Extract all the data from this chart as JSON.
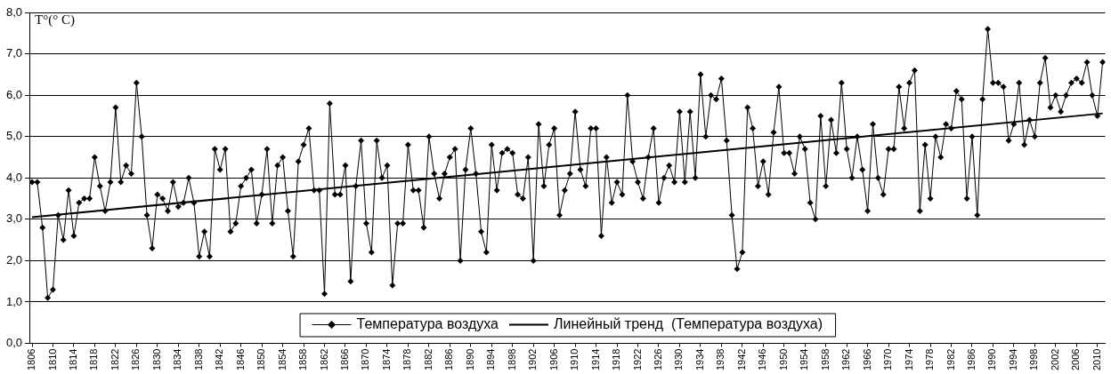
{
  "chart_data": {
    "type": "line",
    "ylabel": "T°(° C)",
    "x": [
      1806,
      1807,
      1808,
      1809,
      1810,
      1811,
      1812,
      1813,
      1814,
      1815,
      1816,
      1817,
      1818,
      1819,
      1820,
      1821,
      1822,
      1823,
      1824,
      1825,
      1826,
      1827,
      1828,
      1829,
      1830,
      1831,
      1832,
      1833,
      1834,
      1835,
      1836,
      1837,
      1838,
      1839,
      1840,
      1841,
      1842,
      1843,
      1844,
      1845,
      1846,
      1847,
      1848,
      1849,
      1850,
      1851,
      1852,
      1853,
      1854,
      1855,
      1856,
      1857,
      1858,
      1859,
      1860,
      1861,
      1862,
      1863,
      1864,
      1865,
      1866,
      1867,
      1868,
      1869,
      1870,
      1871,
      1872,
      1873,
      1874,
      1875,
      1876,
      1877,
      1878,
      1879,
      1880,
      1881,
      1882,
      1883,
      1884,
      1885,
      1886,
      1887,
      1888,
      1889,
      1890,
      1891,
      1892,
      1893,
      1894,
      1895,
      1896,
      1897,
      1898,
      1899,
      1900,
      1901,
      1902,
      1903,
      1904,
      1905,
      1906,
      1907,
      1908,
      1909,
      1910,
      1911,
      1912,
      1913,
      1914,
      1915,
      1916,
      1917,
      1918,
      1919,
      1920,
      1921,
      1922,
      1923,
      1924,
      1925,
      1926,
      1927,
      1928,
      1929,
      1930,
      1931,
      1932,
      1933,
      1934,
      1935,
      1936,
      1937,
      1938,
      1939,
      1940,
      1941,
      1942,
      1943,
      1944,
      1945,
      1946,
      1947,
      1948,
      1949,
      1950,
      1951,
      1952,
      1953,
      1954,
      1955,
      1956,
      1957,
      1958,
      1959,
      1960,
      1961,
      1962,
      1963,
      1964,
      1965,
      1966,
      1967,
      1968,
      1969,
      1970,
      1971,
      1972,
      1973,
      1974,
      1975,
      1976,
      1977,
      1978,
      1979,
      1980,
      1981,
      1982,
      1983,
      1984,
      1985,
      1986,
      1987,
      1988,
      1989,
      1990,
      1991,
      1992,
      1993,
      1994,
      1995,
      1996,
      1997,
      1998,
      1999,
      2000,
      2001,
      2002,
      2003,
      2004,
      2005,
      2006,
      2007,
      2008,
      2009,
      2010,
      2011
    ],
    "xlim": [
      1805.5,
      2011.5
    ],
    "xticks": [
      1806,
      1810,
      1814,
      1818,
      1822,
      1826,
      1830,
      1834,
      1838,
      1842,
      1846,
      1850,
      1854,
      1858,
      1862,
      1866,
      1870,
      1874,
      1878,
      1882,
      1886,
      1890,
      1894,
      1898,
      1902,
      1906,
      1910,
      1914,
      1918,
      1922,
      1926,
      1930,
      1934,
      1938,
      1942,
      1946,
      1950,
      1954,
      1958,
      1962,
      1966,
      1970,
      1974,
      1978,
      1982,
      1986,
      1990,
      1994,
      1998,
      2002,
      2006,
      2010
    ],
    "ylim": [
      0,
      8
    ],
    "yticks": [
      {
        "value": 0,
        "label": "0,0"
      },
      {
        "value": 1,
        "label": "1,0"
      },
      {
        "value": 2,
        "label": "2,0"
      },
      {
        "value": 3,
        "label": "3,0"
      },
      {
        "value": 4,
        "label": "4,0"
      },
      {
        "value": 5,
        "label": "5,0"
      },
      {
        "value": 6,
        "label": "6,0"
      },
      {
        "value": 7,
        "label": "7,0"
      },
      {
        "value": 8,
        "label": "8,0"
      }
    ],
    "grid": "y",
    "legend": "bottom",
    "line_style": "solid",
    "series": [
      {
        "name": "Температура воздуха",
        "color": "#000000",
        "marker": "diamond",
        "values": [
          3.9,
          3.9,
          2.8,
          1.1,
          1.3,
          3.1,
          2.5,
          3.7,
          2.6,
          3.4,
          3.5,
          3.5,
          4.5,
          3.8,
          3.2,
          3.9,
          5.7,
          3.9,
          4.3,
          4.1,
          6.3,
          5.0,
          3.1,
          2.3,
          3.6,
          3.5,
          3.2,
          3.9,
          3.3,
          3.4,
          4.0,
          3.4,
          2.1,
          2.7,
          2.1,
          4.7,
          4.2,
          4.7,
          2.7,
          2.9,
          3.8,
          4.0,
          4.2,
          2.9,
          3.6,
          4.7,
          2.9,
          4.3,
          4.5,
          3.2,
          2.1,
          4.4,
          4.8,
          5.2,
          3.7,
          3.7,
          1.2,
          5.8,
          3.6,
          3.6,
          4.3,
          1.5,
          3.8,
          4.9,
          2.9,
          2.2,
          4.9,
          4.0,
          4.3,
          1.4,
          2.9,
          2.9,
          4.8,
          3.7,
          3.7,
          2.8,
          5.0,
          4.1,
          3.5,
          4.1,
          4.5,
          4.7,
          2.0,
          4.2,
          5.2,
          4.1,
          2.7,
          2.2,
          4.8,
          3.7,
          4.6,
          4.7,
          4.6,
          3.6,
          3.5,
          4.5,
          2.0,
          5.3,
          3.8,
          4.8,
          5.2,
          3.1,
          3.7,
          4.1,
          5.6,
          4.2,
          3.8,
          5.2,
          5.2,
          2.6,
          4.5,
          3.4,
          3.9,
          3.6,
          6.0,
          4.4,
          3.9,
          3.5,
          4.5,
          5.2,
          3.4,
          4.0,
          4.3,
          3.9,
          5.6,
          3.9,
          5.6,
          4.0,
          6.5,
          5.0,
          6.0,
          5.9,
          6.4,
          4.9,
          3.1,
          1.8,
          2.2,
          5.7,
          5.2,
          3.8,
          4.4,
          3.6,
          5.1,
          6.2,
          4.6,
          4.6,
          4.1,
          5.0,
          4.7,
          3.4,
          3.0,
          5.5,
          3.8,
          5.4,
          4.6,
          6.3,
          4.7,
          4.0,
          5.0,
          4.2,
          3.2,
          5.3,
          4.0,
          3.6,
          4.7,
          4.7,
          6.2,
          5.2,
          6.3,
          6.6,
          3.2,
          4.8,
          3.5,
          5.0,
          4.5,
          5.3,
          5.2,
          6.1,
          5.9,
          3.5,
          5.0,
          3.1,
          5.9,
          7.6,
          6.3,
          6.3,
          6.2,
          4.9,
          5.3,
          6.3,
          4.8,
          5.4,
          5.0,
          6.3,
          6.9,
          5.7,
          6.0,
          5.6,
          6.0,
          6.3,
          6.4,
          6.3,
          6.8,
          6.0,
          5.5,
          6.8
        ]
      },
      {
        "name": "Линейный тренд  (Температура воздуха)",
        "type": "line",
        "color": "#000000",
        "marker": "none",
        "x": [
          1806,
          2011
        ],
        "values": [
          3.05,
          5.56
        ]
      }
    ]
  }
}
